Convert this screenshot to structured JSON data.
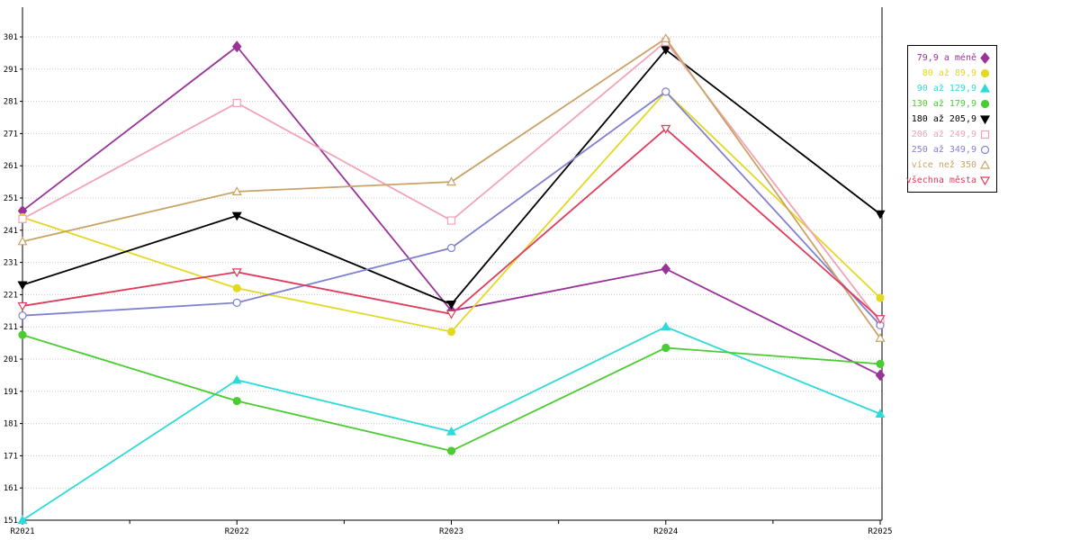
{
  "chart_data": {
    "type": "line",
    "title": "",
    "xlabel": "",
    "ylabel": "",
    "categories": [
      "R2021",
      "R2022",
      "R2023",
      "R2024",
      "R2025"
    ],
    "ylim": [
      151,
      301
    ],
    "ytick_step": 10,
    "grid": "dotted-horizontal",
    "legend_position": "right",
    "frame_color": "#000000",
    "grid_color": "#c8c8c8",
    "series": [
      {
        "name": "79,9 a méně",
        "color": "#993399",
        "marker": "diamond",
        "marker_filled": true,
        "values": [
          247,
          298,
          216,
          229,
          196
        ]
      },
      {
        "name": "80 až 89,9",
        "color": "#e3d822",
        "marker": "circle",
        "marker_filled": true,
        "values": [
          245,
          223,
          209.5,
          284,
          220
        ]
      },
      {
        "name": "90 až 129,9",
        "color": "#2fd9d9",
        "marker": "triangle-up",
        "marker_filled": true,
        "values": [
          151,
          194.5,
          178.5,
          211,
          184
        ]
      },
      {
        "name": "130 až 179,9",
        "color": "#4ccc33",
        "marker": "circle",
        "marker_filled": true,
        "values": [
          208.5,
          188,
          172.5,
          204.5,
          199.5
        ]
      },
      {
        "name": "180 až 205,9",
        "color": "#000000",
        "marker": "triangle-down",
        "marker_filled": true,
        "values": [
          224,
          245.5,
          218,
          297,
          246
        ]
      },
      {
        "name": "206 až 249,9",
        "color": "#f2a3b6",
        "marker": "square",
        "marker_filled": false,
        "values": [
          244.5,
          280.5,
          244,
          299.5,
          212.5
        ]
      },
      {
        "name": "250 až 349,9",
        "color": "#8080d2",
        "marker": "circle",
        "marker_filled": false,
        "values": [
          214.5,
          218.5,
          235.5,
          284,
          211.5
        ]
      },
      {
        "name": "více než 350",
        "color": "#c9a366",
        "marker": "triangle-up",
        "marker_filled": false,
        "values": [
          237.5,
          253,
          256,
          300.5,
          207.5
        ]
      },
      {
        "name": "všechna města",
        "color": "#e03a5c",
        "marker": "triangle-down",
        "marker_filled": false,
        "values": [
          217.5,
          228,
          215,
          272.5,
          213.5
        ]
      }
    ]
  }
}
